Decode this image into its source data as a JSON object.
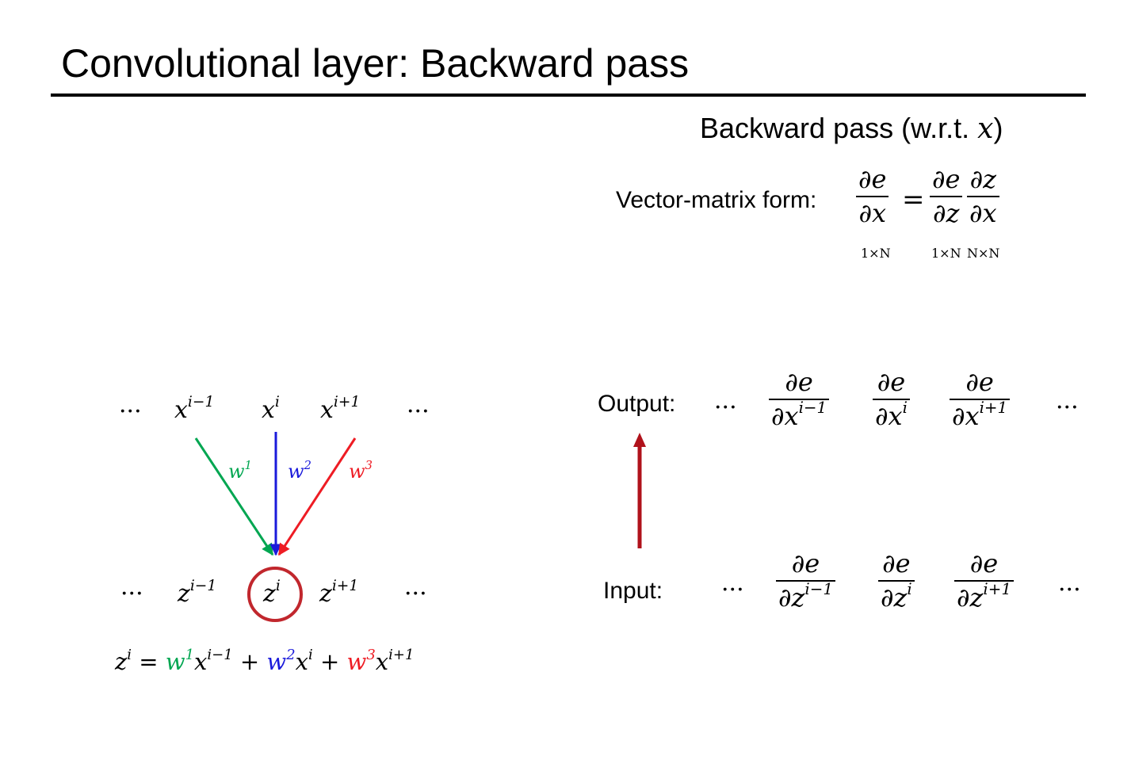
{
  "title": "Convolutional layer: Backward pass",
  "backward_heading": {
    "text": "Backward pass (w.r.t. ",
    "var": "x",
    "close": ")"
  },
  "vector_matrix": {
    "label": "Vector-matrix form:",
    "lhs_num": "∂e",
    "lhs_den": "∂x",
    "equals": "=",
    "rhs1_num": "∂e",
    "rhs1_den": "∂z",
    "rhs2_num": "∂z",
    "rhs2_den": "∂x",
    "dim_lhs": "1×N",
    "dim_rhs1": "1×N",
    "dim_rhs2": "N×N"
  },
  "diagram": {
    "ellipsis": "···",
    "x_nodes": [
      {
        "base": "x",
        "sup": "i−1"
      },
      {
        "base": "x",
        "sup": "i"
      },
      {
        "base": "x",
        "sup": "i+1"
      }
    ],
    "z_nodes": [
      {
        "base": "z",
        "sup": "i−1"
      },
      {
        "base": "z",
        "sup": "i"
      },
      {
        "base": "z",
        "sup": "i+1"
      }
    ],
    "weights": [
      {
        "base": "w",
        "sup": "1",
        "color": "#00a651"
      },
      {
        "base": "w",
        "sup": "2",
        "color": "#1a1adb"
      },
      {
        "base": "w",
        "sup": "3",
        "color": "#ee1c24"
      }
    ],
    "highlight_color": "#c1272d"
  },
  "equation": {
    "lhs": "z",
    "lhs_sup": "i",
    "equals": "=",
    "plus": "+",
    "terms": [
      {
        "w": "w",
        "w_sup": "1",
        "x": "x",
        "x_sup": "i−1"
      },
      {
        "w": "w",
        "w_sup": "2",
        "x": "x",
        "x_sup": "i"
      },
      {
        "w": "w",
        "w_sup": "3",
        "x": "x",
        "x_sup": "i+1"
      }
    ]
  },
  "output_row": {
    "label": "Output:",
    "ellipsis": "···",
    "fracs": [
      {
        "num": "∂e",
        "den": "∂x",
        "den_sup": "i−1"
      },
      {
        "num": "∂e",
        "den": "∂x",
        "den_sup": "i"
      },
      {
        "num": "∂e",
        "den": "∂x",
        "den_sup": "i+1"
      }
    ]
  },
  "input_row": {
    "label": "Input:",
    "ellipsis": "···",
    "fracs": [
      {
        "num": "∂e",
        "den": "∂z",
        "den_sup": "i−1"
      },
      {
        "num": "∂e",
        "den": "∂z",
        "den_sup": "i"
      },
      {
        "num": "∂e",
        "den": "∂z",
        "den_sup": "i+1"
      }
    ]
  },
  "arrow_color": "#b0121b"
}
